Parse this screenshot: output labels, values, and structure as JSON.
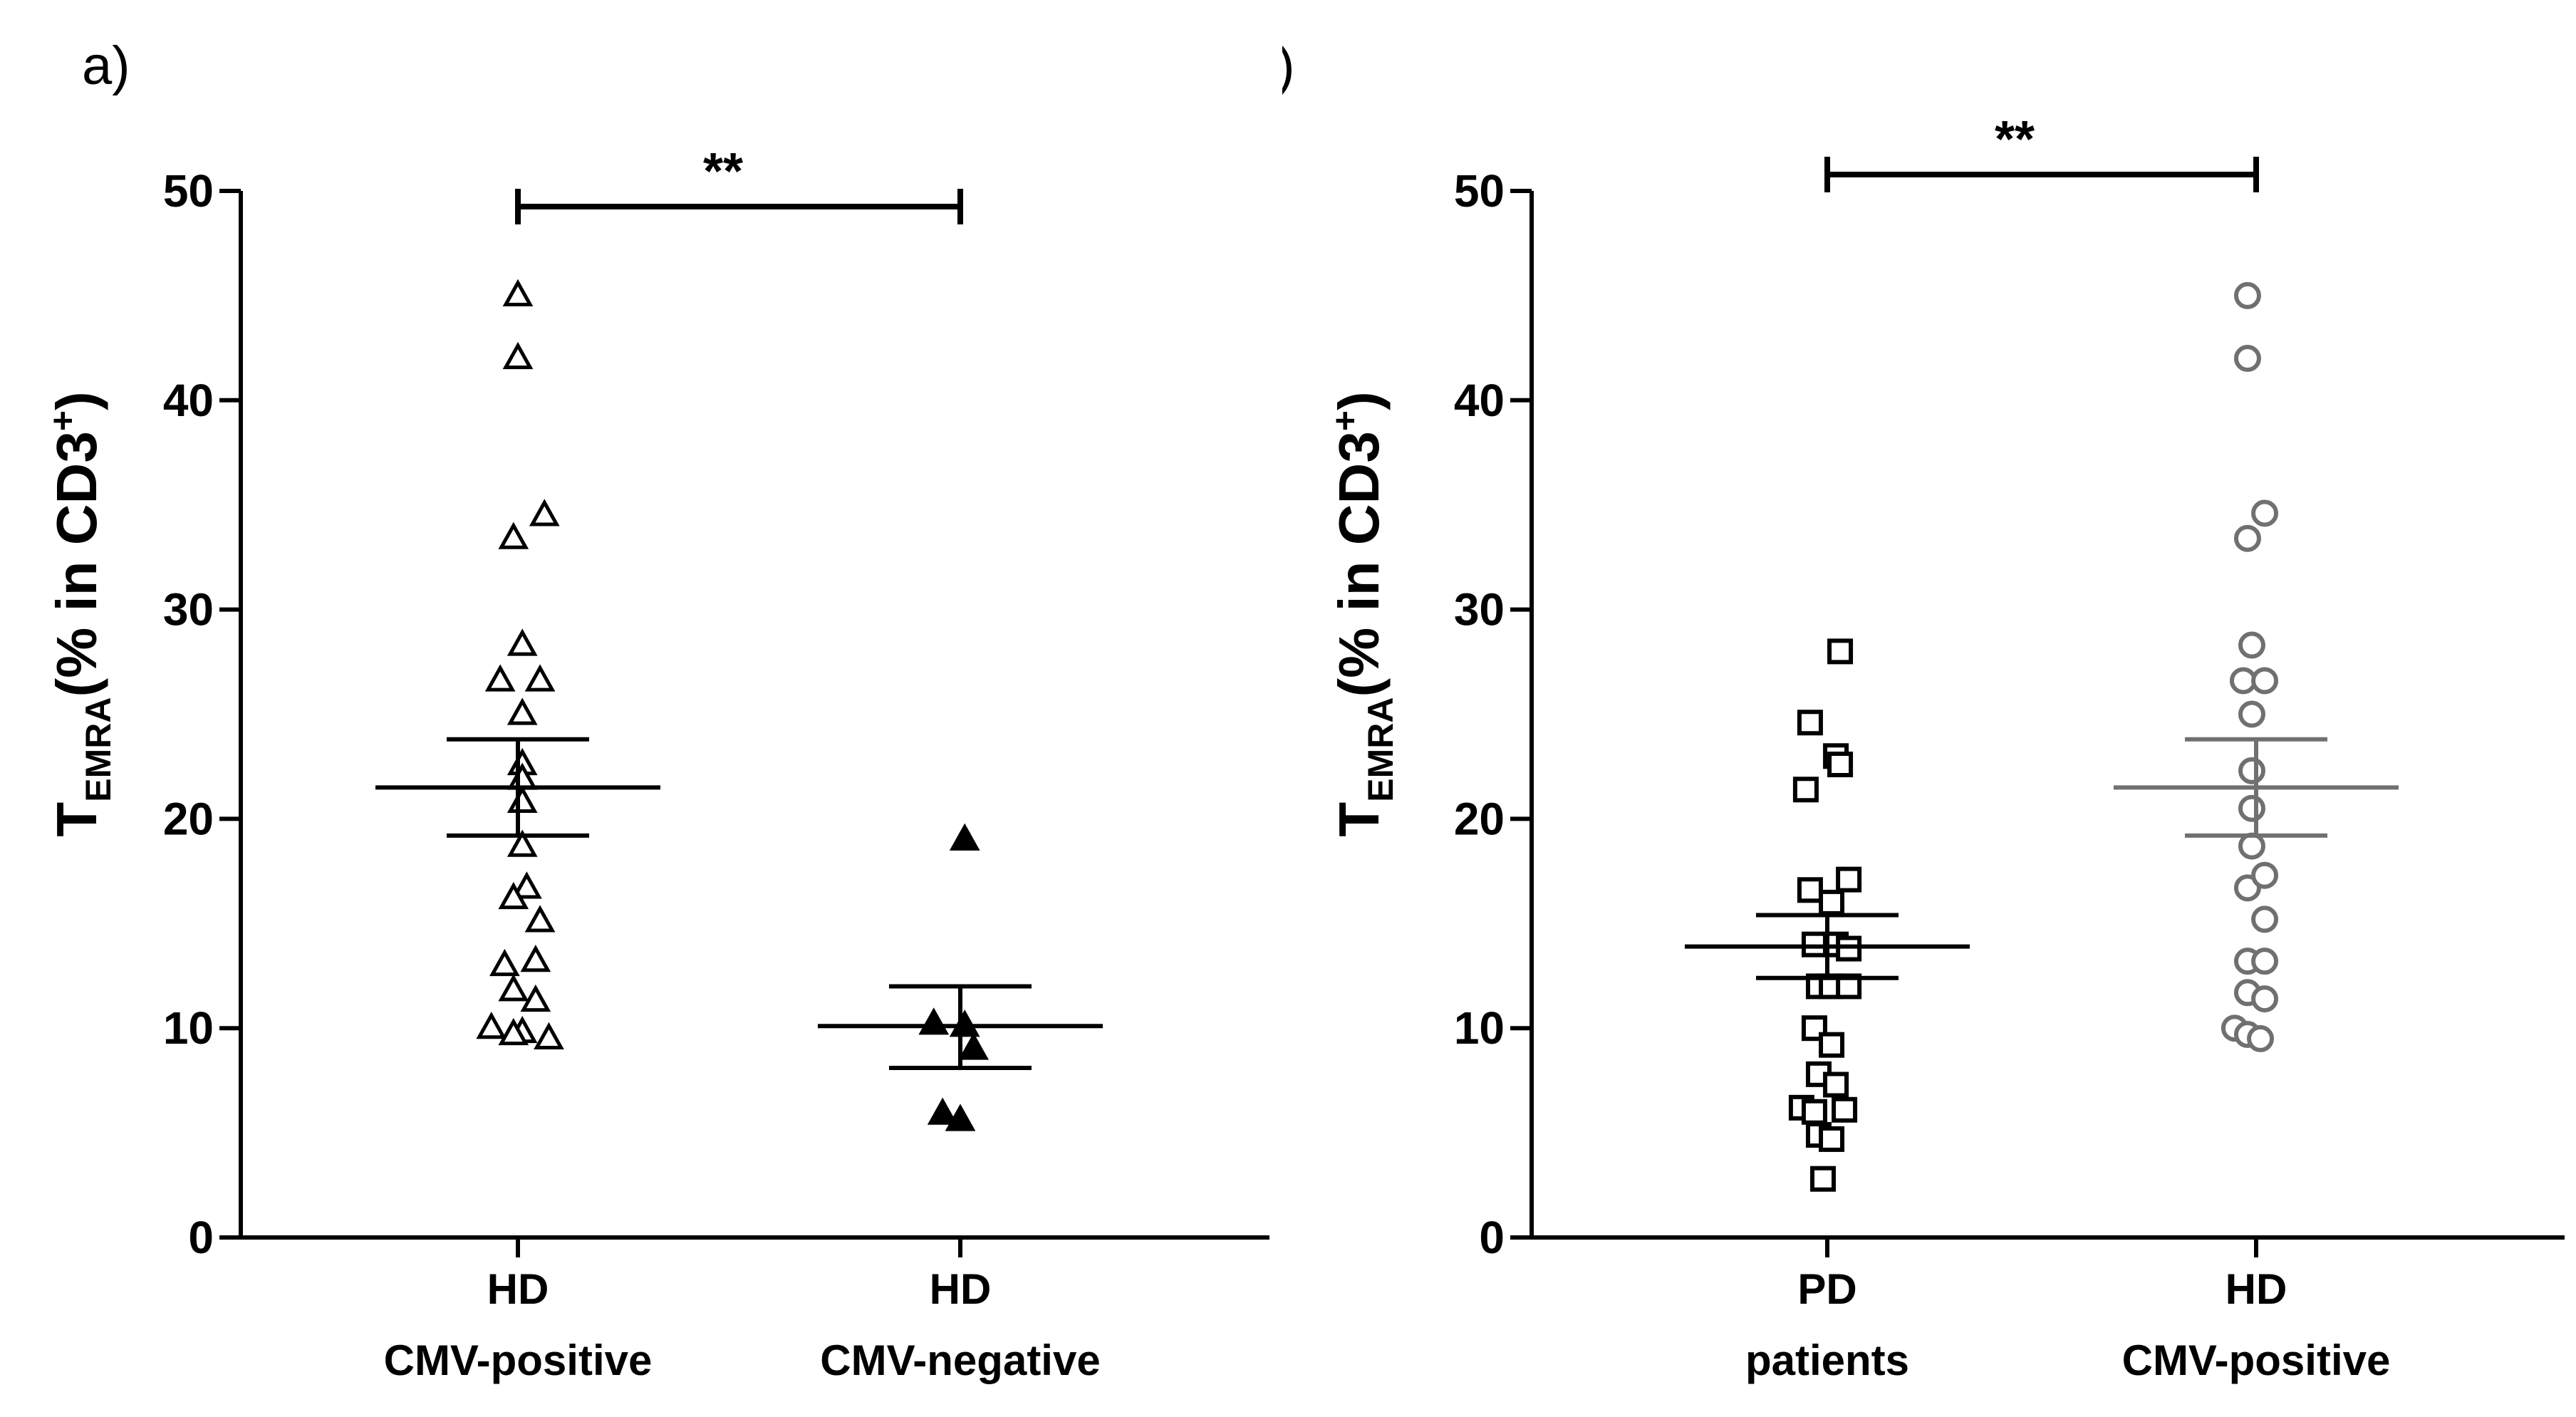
{
  "chart_data": [
    {
      "type": "scatter",
      "panel_label": "a)",
      "ylabel_main": "T",
      "ylabel_sub": "EMRA",
      "ylabel_rest": "(% in CD3",
      "ylabel_sup": "+",
      "ylabel_close": ")",
      "ylim": [
        0,
        50
      ],
      "yticks": [
        "0",
        "10",
        "20",
        "30",
        "40",
        "50"
      ],
      "categories": [
        {
          "line1": "HD",
          "line2": "CMV-positive"
        },
        {
          "line1": "HD",
          "line2": "CMV-negative"
        }
      ],
      "significance": "**",
      "series": [
        {
          "marker": "triangle-open",
          "color": "#000000",
          "mean": 21.5,
          "sem_low": 19.2,
          "sem_high": 23.8,
          "points": [
            {
              "x": 0,
              "y": 45.0
            },
            {
              "x": 0,
              "y": 42.0
            },
            {
              "x": 0.12,
              "y": 34.5
            },
            {
              "x": -0.02,
              "y": 33.4
            },
            {
              "x": 0.02,
              "y": 28.3
            },
            {
              "x": -0.08,
              "y": 26.6
            },
            {
              "x": 0.1,
              "y": 26.6
            },
            {
              "x": 0.02,
              "y": 25.0
            },
            {
              "x": 0.02,
              "y": 22.6
            },
            {
              "x": 0.02,
              "y": 21.9
            },
            {
              "x": 0.02,
              "y": 20.8
            },
            {
              "x": 0.02,
              "y": 18.7
            },
            {
              "x": 0.04,
              "y": 16.7
            },
            {
              "x": -0.02,
              "y": 16.2
            },
            {
              "x": 0.1,
              "y": 15.1
            },
            {
              "x": -0.06,
              "y": 13.0
            },
            {
              "x": 0.08,
              "y": 13.2
            },
            {
              "x": -0.02,
              "y": 11.8
            },
            {
              "x": 0.08,
              "y": 11.3
            },
            {
              "x": -0.12,
              "y": 10.0
            },
            {
              "x": 0.02,
              "y": 9.8
            },
            {
              "x": -0.02,
              "y": 9.7
            },
            {
              "x": 0.14,
              "y": 9.5
            }
          ]
        },
        {
          "marker": "triangle-filled",
          "color": "#000000",
          "mean": 10.1,
          "sem_low": 8.1,
          "sem_high": 12.0,
          "points": [
            {
              "x": 0.02,
              "y": 19.0
            },
            {
              "x": -0.12,
              "y": 10.2
            },
            {
              "x": 0.02,
              "y": 10.1
            },
            {
              "x": 0.06,
              "y": 9.0
            },
            {
              "x": -0.08,
              "y": 5.9
            },
            {
              "x": 0.0,
              "y": 5.6
            }
          ]
        }
      ]
    },
    {
      "type": "scatter",
      "panel_label": "b)",
      "ylabel_main": "T",
      "ylabel_sub": "EMRA",
      "ylabel_rest": "(% in CD3",
      "ylabel_sup": "+",
      "ylabel_close": ")",
      "ylim": [
        0,
        50
      ],
      "yticks": [
        "0",
        "10",
        "20",
        "30",
        "40",
        "50"
      ],
      "categories": [
        {
          "line1": "PD",
          "line2": "patients"
        },
        {
          "line1": "HD",
          "line2": "CMV-positive"
        }
      ],
      "significance": "**",
      "series": [
        {
          "marker": "square-open",
          "color": "#000000",
          "mean": 13.9,
          "sem_low": 12.4,
          "sem_high": 15.4,
          "points": [
            {
              "x": 0.06,
              "y": 28.0
            },
            {
              "x": -0.08,
              "y": 24.6
            },
            {
              "x": 0.04,
              "y": 23.0
            },
            {
              "x": 0.06,
              "y": 22.6
            },
            {
              "x": -0.1,
              "y": 21.4
            },
            {
              "x": 0.1,
              "y": 17.1
            },
            {
              "x": -0.08,
              "y": 16.6
            },
            {
              "x": 0.02,
              "y": 16.0
            },
            {
              "x": -0.06,
              "y": 14.0
            },
            {
              "x": 0.04,
              "y": 14.0
            },
            {
              "x": 0.1,
              "y": 13.8
            },
            {
              "x": -0.04,
              "y": 12.0
            },
            {
              "x": 0.02,
              "y": 12.0
            },
            {
              "x": 0.1,
              "y": 12.0
            },
            {
              "x": -0.06,
              "y": 10.0
            },
            {
              "x": 0.02,
              "y": 9.2
            },
            {
              "x": -0.04,
              "y": 7.8
            },
            {
              "x": 0.04,
              "y": 7.3
            },
            {
              "x": -0.12,
              "y": 6.2
            },
            {
              "x": -0.06,
              "y": 6.0
            },
            {
              "x": 0.08,
              "y": 6.1
            },
            {
              "x": -0.04,
              "y": 4.9
            },
            {
              "x": 0.02,
              "y": 4.7
            },
            {
              "x": -0.02,
              "y": 2.8
            }
          ]
        },
        {
          "marker": "circle-open",
          "color": "#707070",
          "mean": 21.5,
          "sem_low": 19.2,
          "sem_high": 23.8,
          "points": [
            {
              "x": -0.04,
              "y": 45.0
            },
            {
              "x": -0.04,
              "y": 42.0
            },
            {
              "x": 0.04,
              "y": 34.6
            },
            {
              "x": -0.04,
              "y": 33.4
            },
            {
              "x": -0.02,
              "y": 28.3
            },
            {
              "x": -0.06,
              "y": 26.6
            },
            {
              "x": 0.04,
              "y": 26.6
            },
            {
              "x": -0.02,
              "y": 25.0
            },
            {
              "x": -0.02,
              "y": 22.3
            },
            {
              "x": -0.02,
              "y": 20.5
            },
            {
              "x": -0.02,
              "y": 18.7
            },
            {
              "x": -0.04,
              "y": 16.7
            },
            {
              "x": 0.04,
              "y": 17.3
            },
            {
              "x": 0.04,
              "y": 15.2
            },
            {
              "x": -0.04,
              "y": 13.2
            },
            {
              "x": 0.04,
              "y": 13.2
            },
            {
              "x": -0.04,
              "y": 11.7
            },
            {
              "x": 0.04,
              "y": 11.4
            },
            {
              "x": -0.1,
              "y": 10.0
            },
            {
              "x": -0.04,
              "y": 9.7
            },
            {
              "x": 0.02,
              "y": 9.5
            }
          ]
        }
      ]
    }
  ]
}
